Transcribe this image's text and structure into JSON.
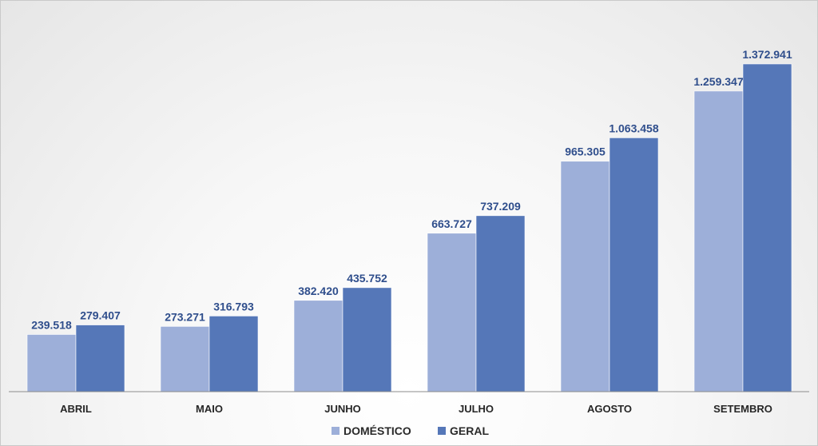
{
  "chart_data": {
    "type": "bar",
    "categories": [
      "ABRIL",
      "MAIO",
      "JUNHO",
      "JULHO",
      "AGOSTO",
      "SETEMBRO"
    ],
    "series": [
      {
        "name": "DOMÉSTICO",
        "color": "#9dafd9",
        "values": [
          239518,
          273271,
          382420,
          663727,
          965305,
          1259347
        ],
        "labels": [
          "239.518",
          "273.271",
          "382.420",
          "663.727",
          "965.305",
          "1.259.347"
        ]
      },
      {
        "name": "GERAL",
        "color": "#5577b8",
        "values": [
          279407,
          316793,
          435752,
          737209,
          1063458,
          1372941
        ],
        "labels": [
          "279.407",
          "316.793",
          "435.752",
          "737.209",
          "1.063.458",
          "1.372.941"
        ]
      }
    ],
    "ylim": [
      0,
      1500000
    ],
    "grid": false,
    "legend_position": "bottom",
    "title": "",
    "xlabel": "",
    "ylabel": ""
  }
}
